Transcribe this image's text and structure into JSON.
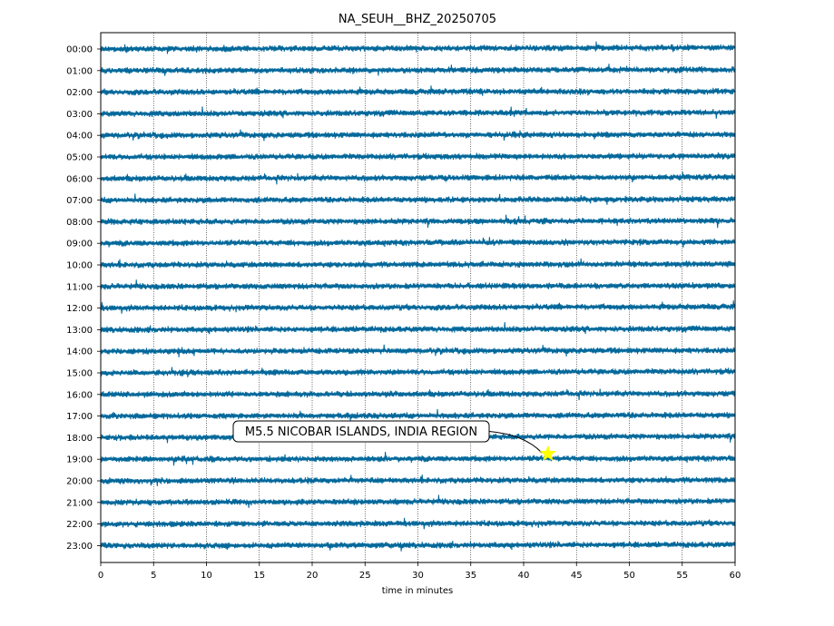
{
  "chart_data": {
    "type": "line",
    "title": "NA_SEUH__BHZ_20250705",
    "xlabel": "time in minutes",
    "ylabel": "",
    "xlim": [
      0,
      60
    ],
    "x_ticks": [
      0,
      5,
      10,
      15,
      20,
      25,
      30,
      35,
      40,
      45,
      50,
      55,
      60
    ],
    "grid": "vertical dotted at every 5 minutes",
    "trace_color": "#00679a",
    "rows": [
      "00:00",
      "01:00",
      "02:00",
      "03:00",
      "04:00",
      "05:00",
      "06:00",
      "07:00",
      "08:00",
      "09:00",
      "10:00",
      "11:00",
      "12:00",
      "13:00",
      "14:00",
      "15:00",
      "16:00",
      "17:00",
      "18:00",
      "19:00",
      "20:00",
      "21:00",
      "22:00",
      "23:00"
    ],
    "event": {
      "label": "M5.5 NICOBAR ISLANDS, INDIA REGION",
      "hour_row": "19:00",
      "minute": 42.3,
      "marker_color": "#ffff00",
      "marker": "star"
    }
  }
}
